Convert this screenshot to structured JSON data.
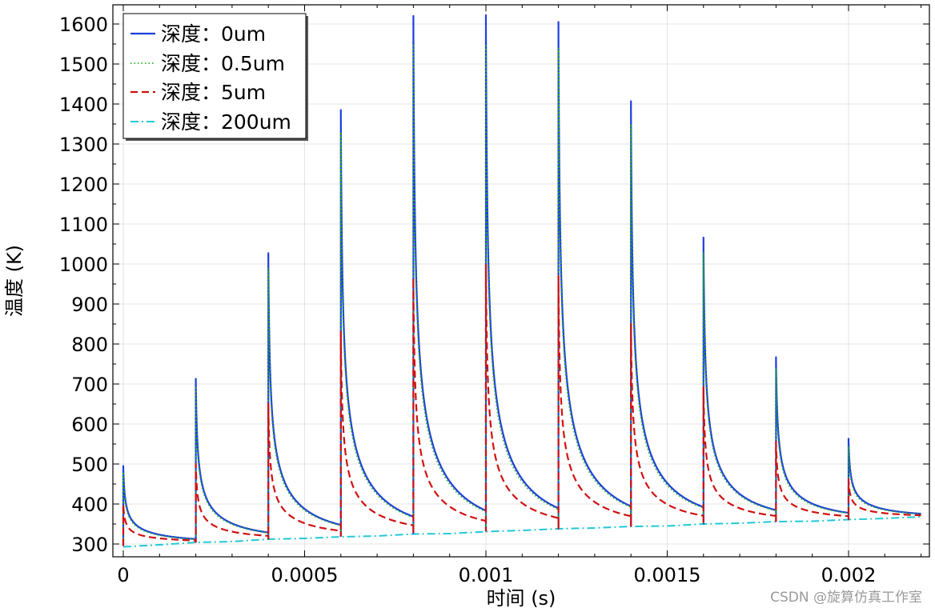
{
  "chart_data": {
    "type": "line",
    "title": "",
    "xlabel": "时间 (s)",
    "ylabel": "温度 (K)",
    "xlim": [
      -3e-05,
      0.00223
    ],
    "ylim": [
      270,
      1640
    ],
    "xticks": [
      0,
      0.0005,
      0.001,
      0.0015,
      0.002
    ],
    "xtick_labels": [
      "0",
      "0.0005",
      "0.001",
      "0.0015",
      "0.002"
    ],
    "yticks": [
      300,
      400,
      500,
      600,
      700,
      800,
      900,
      1000,
      1100,
      1200,
      1300,
      1400,
      1500,
      1600
    ],
    "ytick_labels": [
      "300",
      "400",
      "500",
      "600",
      "700",
      "800",
      "900",
      "1000",
      "1100",
      "1200",
      "1300",
      "1400",
      "1500",
      "1600"
    ],
    "grid": true,
    "legend_position": "top-left",
    "pulse_times": [
      0,
      0.0002,
      0.0004,
      0.0006,
      0.0008,
      0.001,
      0.0012,
      0.0014,
      0.0016,
      0.0018,
      0.002
    ],
    "end_time": 0.0022,
    "series": [
      {
        "name": "深度：0um",
        "color": "#1f3fdc",
        "style": "solid",
        "peaks": [
          495,
          713,
          1027,
          1385,
          1620,
          1622,
          1605,
          1407,
          1066,
          767,
          563
        ],
        "baseline": [
          295,
          305,
          313,
          320,
          327,
          333,
          339,
          345,
          351,
          357,
          362
        ],
        "end_value": 368
      },
      {
        "name": "深度：0.5um",
        "color": "#22b222",
        "style": "dotted",
        "peaks": [
          480,
          690,
          990,
          1330,
          1550,
          1550,
          1540,
          1350,
          1030,
          740,
          545
        ],
        "baseline": [
          295,
          305,
          313,
          320,
          327,
          333,
          339,
          345,
          351,
          357,
          362
        ],
        "end_value": 368
      },
      {
        "name": "深度：5um",
        "color": "#d01010",
        "style": "dashed",
        "peaks": [
          400,
          500,
          652,
          830,
          965,
          998,
          970,
          852,
          693,
          556,
          462
        ],
        "baseline": [
          295,
          305,
          313,
          320,
          327,
          333,
          339,
          345,
          351,
          357,
          362
        ],
        "end_value": 368
      },
      {
        "name": "深度：200um",
        "color": "#22c8d6",
        "style": "dashdot",
        "x": [
          0,
          0.0001,
          0.0002,
          0.0003,
          0.0004,
          0.0005,
          0.0006,
          0.0007,
          0.0008,
          0.0009,
          0.001,
          0.0011,
          0.0012,
          0.0013,
          0.0014,
          0.0015,
          0.0016,
          0.0017,
          0.0018,
          0.0019,
          0.002,
          0.0021,
          0.0022
        ],
        "values": [
          293,
          298,
          304,
          306,
          312,
          314,
          318,
          320,
          325,
          326,
          331,
          334,
          338,
          340,
          344,
          345,
          350,
          352,
          356,
          357,
          361,
          364,
          368
        ]
      }
    ]
  },
  "watermark": "CSDN @旋算仿真工作室"
}
